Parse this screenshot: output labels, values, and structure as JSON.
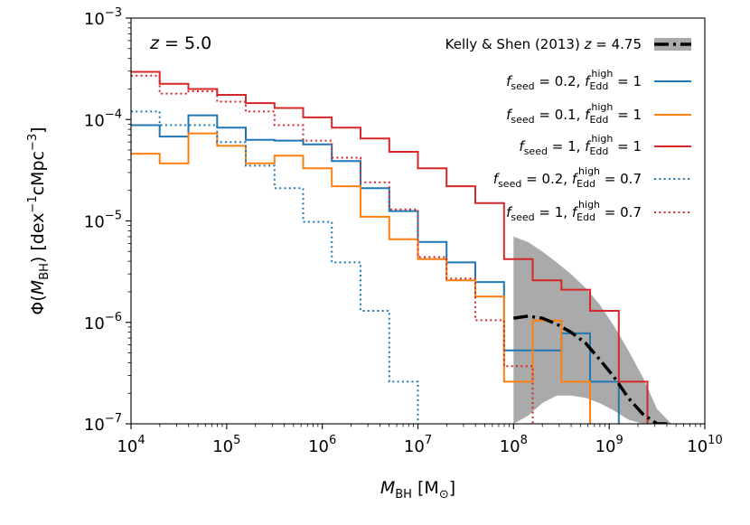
{
  "chart_data": {
    "type": "step-histogram",
    "title": "",
    "annotation": "z = 5.0",
    "xlabel": "M_BH [M_⊙]",
    "ylabel": "Φ(M_BH) [dex^-1 cMpc^-3]",
    "xscale": "log",
    "yscale": "log",
    "xlim": [
      10000,
      10000000000
    ],
    "ylim": [
      1e-07,
      0.001
    ],
    "x_ticks": [
      {
        "value": 10000,
        "base": "10",
        "exp": "4"
      },
      {
        "value": 100000,
        "base": "10",
        "exp": "5"
      },
      {
        "value": 1000000,
        "base": "10",
        "exp": "6"
      },
      {
        "value": 10000000,
        "base": "10",
        "exp": "7"
      },
      {
        "value": 100000000,
        "base": "10",
        "exp": "8"
      },
      {
        "value": 1000000000,
        "base": "10",
        "exp": "9"
      },
      {
        "value": 10000000000,
        "base": "10",
        "exp": "10"
      }
    ],
    "y_ticks": [
      {
        "value": 1e-07,
        "base": "10",
        "exp": "−7"
      },
      {
        "value": 1e-06,
        "base": "10",
        "exp": "−6"
      },
      {
        "value": 1e-05,
        "base": "10",
        "exp": "−5"
      },
      {
        "value": 0.0001,
        "base": "10",
        "exp": "−4"
      },
      {
        "value": 0.001,
        "base": "10",
        "exp": "−3"
      }
    ],
    "legend_position": "top-right",
    "bin_edges_log10": [
      4.0,
      4.3,
      4.6,
      4.9,
      5.2,
      5.5,
      5.8,
      6.1,
      6.4,
      6.7,
      7.0,
      7.3,
      7.6,
      7.9,
      8.2,
      8.5,
      8.8,
      9.1,
      9.4
    ],
    "series": [
      {
        "name": "f_seed = 0.2, f_Edd^high = 1",
        "color": "#1f77b4",
        "style": "solid",
        "values": [
          8.8e-05,
          6.8e-05,
          0.00011,
          8.3e-05,
          6.3e-05,
          6.2e-05,
          5.7e-05,
          3.9e-05,
          2.1e-05,
          1.25e-05,
          6.2e-06,
          3.9e-06,
          2.5e-06,
          5.3e-07,
          5.3e-07,
          7.8e-07,
          2.6e-07,
          null
        ]
      },
      {
        "name": "f_seed = 0.1, f_Edd^high = 1",
        "color": "#ff7f0e",
        "style": "solid",
        "values": [
          4.6e-05,
          3.7e-05,
          7.3e-05,
          5.5e-05,
          3.7e-05,
          4.4e-05,
          3.3e-05,
          2.2e-05,
          1.1e-05,
          6.6e-06,
          4.2e-06,
          2.6e-06,
          1.8e-06,
          2.6e-07,
          1.04e-06,
          2.6e-07,
          null,
          null
        ]
      },
      {
        "name": "f_seed = 1, f_Edd^high = 1",
        "color": "#d62728",
        "style": "solid",
        "values": [
          0.000295,
          0.000225,
          0.0002,
          0.000175,
          0.000145,
          0.00013,
          0.000105,
          8.3e-05,
          6.5e-05,
          4.8e-05,
          3.3e-05,
          2.2e-05,
          1.5e-05,
          4.2e-06,
          2.6e-06,
          2.1e-06,
          1.3e-06,
          2.6e-07
        ]
      },
      {
        "name": "f_seed = 0.2, f_Edd^high = 0.7",
        "color": "#1f77b4",
        "style": "dotted",
        "values": [
          0.00012,
          8.8e-05,
          8.8e-05,
          6e-05,
          3.5e-05,
          2.1e-05,
          9.8e-06,
          3.9e-06,
          1.3e-06,
          2.6e-07,
          null,
          null,
          null,
          null,
          null,
          null,
          null,
          null
        ]
      },
      {
        "name": "f_seed = 1, f_Edd^high = 0.7",
        "color": "#d62728",
        "style": "dotted",
        "values": [
          0.00027,
          0.00018,
          0.00019,
          0.00015,
          0.00012,
          8.8e-05,
          6.2e-05,
          4.2e-05,
          2.4e-05,
          1.3e-05,
          4.4e-06,
          2.7e-06,
          1.05e-06,
          3.7e-07,
          null,
          null,
          null,
          null
        ]
      }
    ],
    "reference": {
      "name": "Kelly & Shen (2013) z = 4.75",
      "line_color": "#000000",
      "band_color": "#aaaaaa",
      "log10_x": [
        8.0,
        8.15,
        8.3,
        8.45,
        8.6,
        8.75,
        8.9,
        9.05,
        9.2,
        9.35,
        9.5,
        9.65
      ],
      "median": [
        1.1e-06,
        1.15e-06,
        1.1e-06,
        9.6e-07,
        8e-07,
        6.3e-07,
        4.3e-07,
        2.9e-07,
        1.8e-07,
        1.25e-07,
        1e-07,
        1e-07
      ],
      "upper": [
        7e-06,
        6.2e-06,
        5e-06,
        3.9e-06,
        3e-06,
        2.2e-06,
        1.5e-06,
        9.2e-07,
        5.3e-07,
        2.9e-07,
        1.4e-07,
        1e-07
      ],
      "lower": [
        1e-07,
        1.2e-07,
        1.6e-07,
        1.9e-07,
        1.9e-07,
        1.8e-07,
        1.6e-07,
        1.35e-07,
        1.1e-07,
        1e-07,
        1e-07,
        1e-07
      ]
    },
    "legend_entries": [
      {
        "pre": "Kelly & Shen (2013) ",
        "italic": "z",
        "post": " = 4.75"
      },
      {
        "seed": "0.2",
        "edd": "1"
      },
      {
        "seed": "0.1",
        "edd": "1"
      },
      {
        "seed": "1",
        "edd": "1"
      },
      {
        "seed": "0.2",
        "edd": "0.7"
      },
      {
        "seed": "1",
        "edd": "0.7"
      }
    ]
  }
}
